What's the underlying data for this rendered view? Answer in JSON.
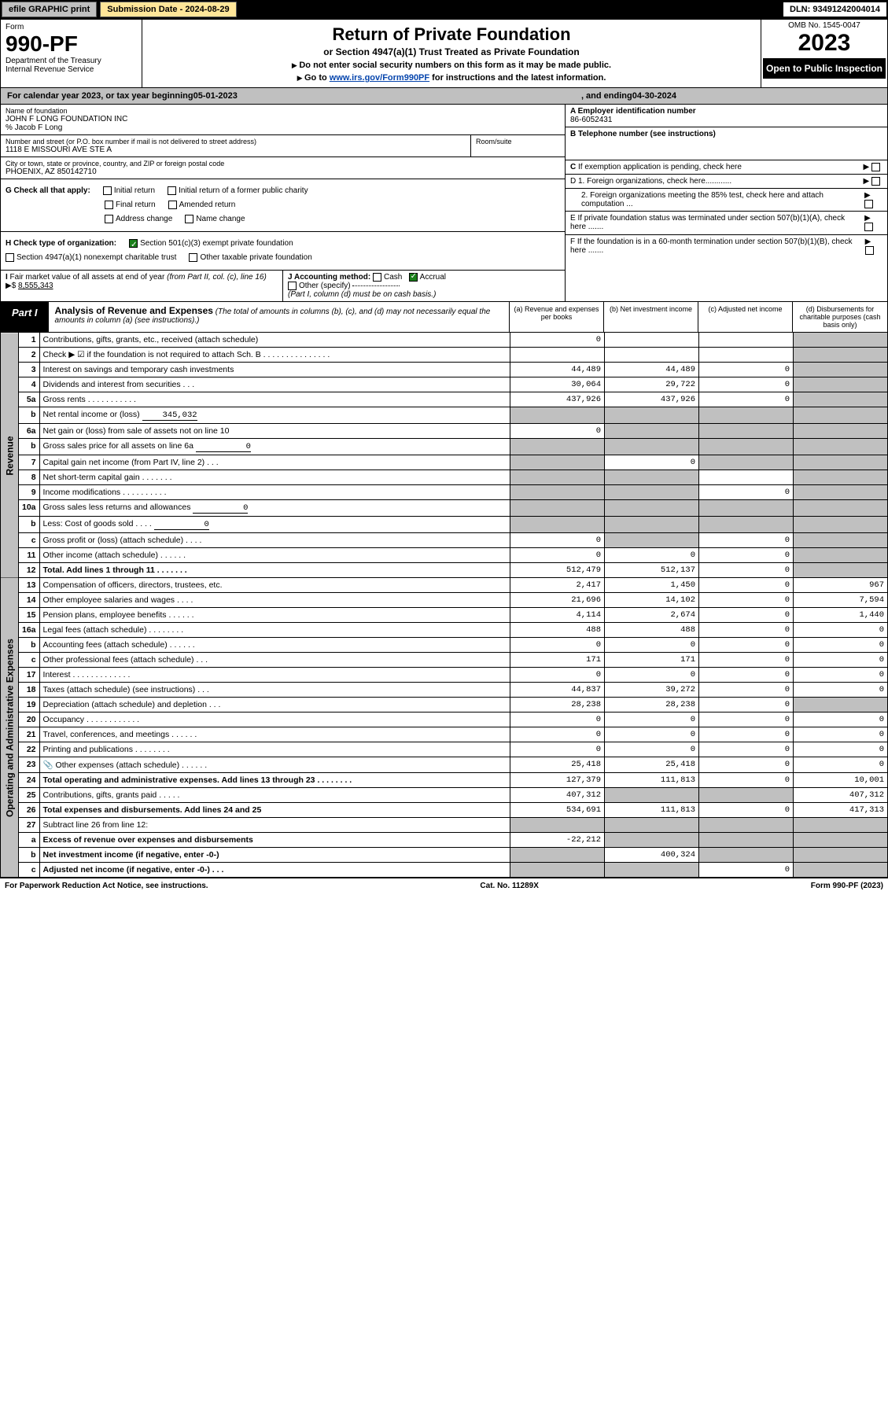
{
  "top_bar": {
    "efile": "efile GRAPHIC print",
    "submission": "Submission Date - 2024-08-29",
    "dln": "DLN: 93491242004014"
  },
  "header": {
    "form_label": "Form",
    "form_no": "990-PF",
    "dept": "Department of the Treasury",
    "irs": "Internal Revenue Service",
    "title": "Return of Private Foundation",
    "subtitle": "or Section 4947(a)(1) Trust Treated as Private Foundation",
    "note1": "Do not enter social security numbers on this form as it may be made public.",
    "note2_pre": "Go to ",
    "note2_link": "www.irs.gov/Form990PF",
    "note2_post": " for instructions and the latest information.",
    "omb": "OMB No. 1545-0047",
    "year": "2023",
    "open": "Open to Public Inspection"
  },
  "cal_year": {
    "prefix": "For calendar year 2023, or tax year beginning ",
    "begin": "05-01-2023",
    "mid": ", and ending ",
    "end": "04-30-2024"
  },
  "foundation": {
    "name_label": "Name of foundation",
    "name": "JOHN F LONG FOUNDATION INC",
    "co": "% Jacob F Long",
    "street_label": "Number and street (or P.O. box number if mail is not delivered to street address)",
    "street": "1118 E MISSOURI AVE STE A",
    "room_label": "Room/suite",
    "room": "",
    "city_label": "City or town, state or province, country, and ZIP or foreign postal code",
    "city": "PHOENIX, AZ  850142710"
  },
  "right_info": {
    "a_label": "A Employer identification number",
    "a_val": "86-6052431",
    "b_label": "B Telephone number (see instructions)",
    "b_val": "",
    "c_label": "C If exemption application is pending, check here",
    "d1": "D 1. Foreign organizations, check here............",
    "d2": "2. Foreign organizations meeting the 85% test, check here and attach computation ...",
    "e": "E  If private foundation status was terminated under section 507(b)(1)(A), check here .......",
    "f": "F  If the foundation is in a 60-month termination under section 507(b)(1)(B), check here .......",
    "arrow": "▶"
  },
  "g_checks": {
    "label": "G Check all that apply:",
    "opts": [
      "Initial return",
      "Initial return of a former public charity",
      "Final return",
      "Amended return",
      "Address change",
      "Name change"
    ]
  },
  "h_checks": {
    "label": "H Check type of organization:",
    "opt1": "Section 501(c)(3) exempt private foundation",
    "opt2": "Section 4947(a)(1) nonexempt charitable trust",
    "opt3": "Other taxable private foundation"
  },
  "i_fmv": {
    "label_a": "I Fair market value of all assets at end of year (from Part II, col. (c), line 16)",
    "arrow": "▶$",
    "val": "8,555,343"
  },
  "j_acct": {
    "label": "J Accounting method:",
    "cash": "Cash",
    "accrual": "Accrual",
    "other": "Other (specify)",
    "note": "(Part I, column (d) must be on cash basis.)"
  },
  "part1": {
    "tag": "Part I",
    "title": "Analysis of Revenue and Expenses",
    "title_note": "(The total of amounts in columns (b), (c), and (d) may not necessarily equal the amounts in column (a) (see instructions).)",
    "col_a": "(a)   Revenue and expenses per books",
    "col_b": "(b)   Net investment income",
    "col_c": "(c)   Adjusted net income",
    "col_d": "(d)   Disbursements for charitable purposes (cash basis only)"
  },
  "side_labels": {
    "revenue": "Revenue",
    "expenses": "Operating and Administrative Expenses"
  },
  "rows": [
    {
      "n": "1",
      "desc": "Contributions, gifts, grants, etc., received (attach schedule)",
      "a": "0",
      "b": "",
      "c": "",
      "d": "_s"
    },
    {
      "n": "2",
      "desc": "Check ▶ ☑ if the foundation is not required to attach Sch. B     .   .   .   .   .   .   .   .   .   .   .   .   .   .   .",
      "a": "",
      "b": "",
      "c": "",
      "d": "_s",
      "bold": false,
      "noB": true,
      "noC": true,
      "noA": true
    },
    {
      "n": "3",
      "desc": "Interest on savings and temporary cash investments",
      "a": "44,489",
      "b": "44,489",
      "c": "0",
      "d": "_s"
    },
    {
      "n": "4",
      "desc": "Dividends and interest from securities    .   .   .",
      "a": "30,064",
      "b": "29,722",
      "c": "0",
      "d": "_s"
    },
    {
      "n": "5a",
      "desc": "Gross rents    .   .   .   .   .   .   .   .   .   .   .",
      "a": "437,926",
      "b": "437,926",
      "c": "0",
      "d": "_s"
    },
    {
      "n": "b",
      "desc": "Net rental income or (loss)",
      "inline": "345,032",
      "a": "_s",
      "b": "_s",
      "c": "_s",
      "d": "_s"
    },
    {
      "n": "6a",
      "desc": "Net gain or (loss) from sale of assets not on line 10",
      "a": "0",
      "b": "_s",
      "c": "_s",
      "d": "_s"
    },
    {
      "n": "b",
      "desc": "Gross sales price for all assets on line 6a",
      "inline": "0",
      "a": "_s",
      "b": "_s",
      "c": "_s",
      "d": "_s"
    },
    {
      "n": "7",
      "desc": "Capital gain net income (from Part IV, line 2)    .   .   .",
      "a": "_s",
      "b": "0",
      "c": "_s",
      "d": "_s"
    },
    {
      "n": "8",
      "desc": "Net short-term capital gain   .   .   .   .   .   .   .",
      "a": "_s",
      "b": "_s",
      "c": "",
      "d": "_s"
    },
    {
      "n": "9",
      "desc": "Income modifications  .   .   .   .   .   .   .   .   .   .",
      "a": "_s",
      "b": "_s",
      "c": "0",
      "d": "_s"
    },
    {
      "n": "10a",
      "desc": "Gross sales less returns and allowances",
      "inline": "0",
      "a": "_s",
      "b": "_s",
      "c": "_s",
      "d": "_s"
    },
    {
      "n": "b",
      "desc": "Less: Cost of goods sold     .   .   .   .",
      "inline": "0",
      "a": "_s",
      "b": "_s",
      "c": "_s",
      "d": "_s"
    },
    {
      "n": "c",
      "desc": "Gross profit or (loss) (attach schedule)     .   .   .   .",
      "a": "0",
      "b": "_s",
      "c": "0",
      "d": "_s"
    },
    {
      "n": "11",
      "desc": "Other income (attach schedule)    .   .   .   .   .   .",
      "a": "0",
      "b": "0",
      "c": "0",
      "d": "_s"
    },
    {
      "n": "12",
      "desc": "Total. Add lines 1 through 11    .   .   .   .   .   .   .",
      "a": "512,479",
      "b": "512,137",
      "c": "0",
      "d": "_s",
      "bold": true
    },
    {
      "n": "13",
      "desc": "Compensation of officers, directors, trustees, etc.",
      "a": "2,417",
      "b": "1,450",
      "c": "0",
      "d": "967"
    },
    {
      "n": "14",
      "desc": "Other employee salaries and wages    .   .   .   .",
      "a": "21,696",
      "b": "14,102",
      "c": "0",
      "d": "7,594"
    },
    {
      "n": "15",
      "desc": "Pension plans, employee benefits  .   .   .   .   .   .",
      "a": "4,114",
      "b": "2,674",
      "c": "0",
      "d": "1,440"
    },
    {
      "n": "16a",
      "desc": "Legal fees (attach schedule)  .   .   .   .   .   .   .   .",
      "a": "488",
      "b": "488",
      "c": "0",
      "d": "0"
    },
    {
      "n": "b",
      "desc": "Accounting fees (attach schedule)  .   .   .   .   .   .",
      "a": "0",
      "b": "0",
      "c": "0",
      "d": "0"
    },
    {
      "n": "c",
      "desc": "Other professional fees (attach schedule)     .   .   .",
      "a": "171",
      "b": "171",
      "c": "0",
      "d": "0"
    },
    {
      "n": "17",
      "desc": "Interest  .   .   .   .   .   .   .   .   .   .   .   .   .",
      "a": "0",
      "b": "0",
      "c": "0",
      "d": "0"
    },
    {
      "n": "18",
      "desc": "Taxes (attach schedule) (see instructions)     .   .   .",
      "a": "44,837",
      "b": "39,272",
      "c": "0",
      "d": "0"
    },
    {
      "n": "19",
      "desc": "Depreciation (attach schedule) and depletion    .   .   .",
      "a": "28,238",
      "b": "28,238",
      "c": "0",
      "d": "_s"
    },
    {
      "n": "20",
      "desc": "Occupancy  .   .   .   .   .   .   .   .   .   .   .   .",
      "a": "0",
      "b": "0",
      "c": "0",
      "d": "0"
    },
    {
      "n": "21",
      "desc": "Travel, conferences, and meetings  .   .   .   .   .   .",
      "a": "0",
      "b": "0",
      "c": "0",
      "d": "0"
    },
    {
      "n": "22",
      "desc": "Printing and publications  .   .   .   .   .   .   .   .",
      "a": "0",
      "b": "0",
      "c": "0",
      "d": "0"
    },
    {
      "n": "23",
      "desc": "Other expenses (attach schedule)  .   .   .   .   .   .",
      "icon": "📎",
      "a": "25,418",
      "b": "25,418",
      "c": "0",
      "d": "0"
    },
    {
      "n": "24",
      "desc": "Total operating and administrative expenses. Add lines 13 through 23    .   .   .   .   .   .   .   .",
      "a": "127,379",
      "b": "111,813",
      "c": "0",
      "d": "10,001",
      "bold": true
    },
    {
      "n": "25",
      "desc": "Contributions, gifts, grants paid     .   .   .   .   .",
      "a": "407,312",
      "b": "_s",
      "c": "_s",
      "d": "407,312"
    },
    {
      "n": "26",
      "desc": "Total expenses and disbursements. Add lines 24 and 25",
      "a": "534,691",
      "b": "111,813",
      "c": "0",
      "d": "417,313",
      "bold": true
    },
    {
      "n": "27",
      "desc": "Subtract line 26 from line 12:",
      "a": "_s",
      "b": "_s",
      "c": "_s",
      "d": "_s"
    },
    {
      "n": "a",
      "desc": "Excess of revenue over expenses and disbursements",
      "a": "-22,212",
      "b": "_s",
      "c": "_s",
      "d": "_s",
      "bold": true
    },
    {
      "n": "b",
      "desc": "Net investment income (if negative, enter -0-)",
      "a": "_s",
      "b": "400,324",
      "c": "_s",
      "d": "_s",
      "bold": true
    },
    {
      "n": "c",
      "desc": "Adjusted net income (if negative, enter -0-)   .   .   .",
      "a": "_s",
      "b": "_s",
      "c": "0",
      "d": "_s",
      "bold": true
    }
  ],
  "footer": {
    "left": "For Paperwork Reduction Act Notice, see instructions.",
    "mid": "Cat. No. 11289X",
    "right": "Form 990-PF (2023)"
  }
}
